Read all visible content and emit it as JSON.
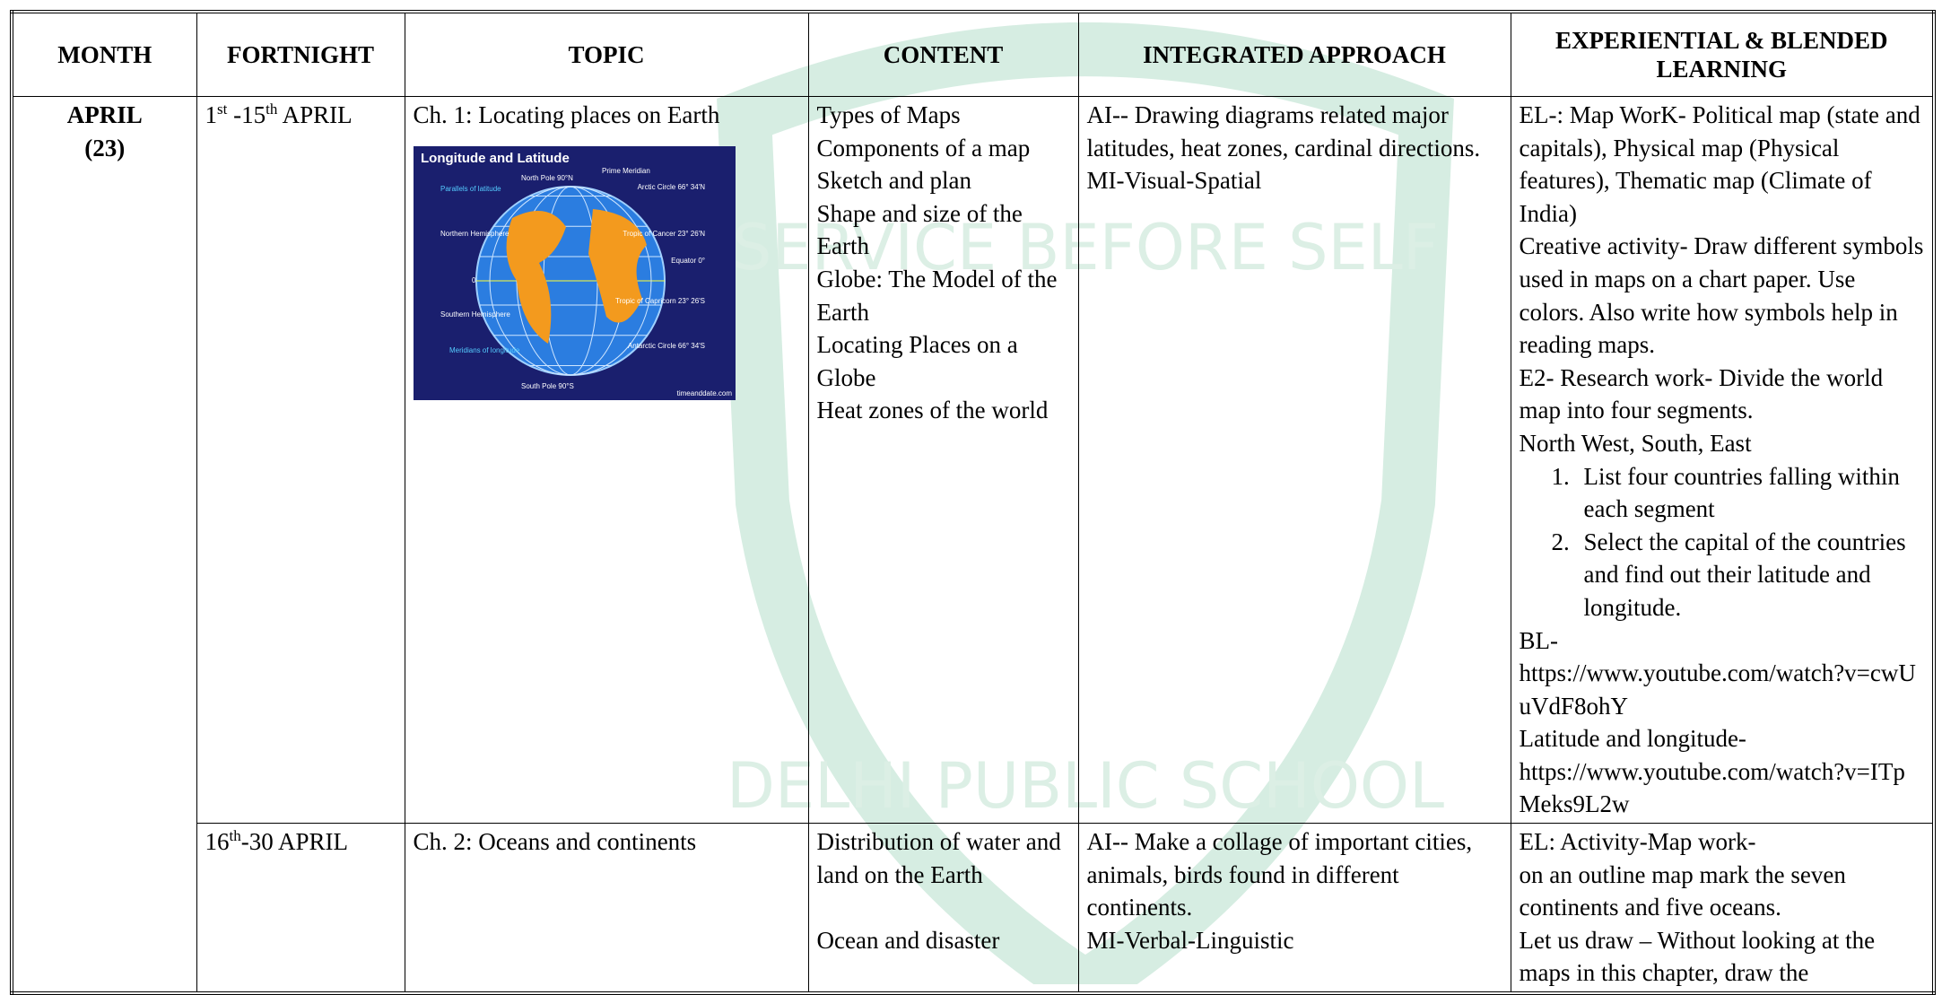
{
  "watermark": {
    "motto": "SERVICE BEFORE SELF",
    "name": "DELHI PUBLIC SCHOOL"
  },
  "table": {
    "columns": [
      "MONTH",
      "FORTNIGHT",
      "TOPIC",
      "CONTENT",
      "INTEGRATED APPROACH",
      "EXPERIENTIAL & BLENDED LEARNING"
    ],
    "rows": [
      {
        "month": {
          "name": "APRIL",
          "days": "(23)"
        },
        "fortnight": [
          {
            "text": "1"
          },
          {
            "text": "st",
            "sup": true
          },
          {
            "text": " -15"
          },
          {
            "text": "th",
            "sup": true
          },
          {
            "text": " APRIL"
          }
        ],
        "topic": "Ch. 1: Locating places on Earth",
        "image": {
          "title": "Longitude and Latitude",
          "labels": [
            "North Pole 90°N",
            "Prime Meridian",
            "Parallels of latitude",
            "Arctic Circle 66° 34'N",
            "Northern Hemisphere",
            "Tropic of Cancer 23° 26'N",
            "Equator 0°",
            "0",
            "Southern Hemisphere",
            "Tropic of Capricorn 23° 26'S",
            "Meridians of longitude",
            "Antarctic Circle 66° 34'S",
            "South Pole 90°S",
            "timeanddate.com"
          ]
        },
        "content": [
          [
            "Types of Maps",
            "Components of a map",
            "Sketch and plan",
            "Shape and size of the Earth",
            "Globe: The Model of the Earth",
            "Locating Places on a Globe",
            "Heat zones of the world"
          ]
        ],
        "integrated": [
          "AI-- Drawing diagrams related major latitudes, heat zones, cardinal directions.",
          "MI-Visual-Spatial"
        ],
        "experiential": [
          {
            "text": "EL-: Map WorK- Political map (state and capitals), Physical map (Physical features), Thematic map (Climate of India)"
          },
          {
            "text": "Creative activity- Draw different symbols used in maps on a chart paper. Use colors. Also write how symbols help in reading maps."
          },
          {
            "text": "E2- Research work- Divide the world map into four segments."
          },
          {
            "text": "North West, South, East"
          },
          {
            "marker": "1.",
            "text": "List four countries falling within each segment"
          },
          {
            "marker": "2.",
            "text": "Select the capital of the countries and find out their latitude and longitude."
          },
          {
            "text": "BL-"
          },
          {
            "text": "https://www.youtube.com/watch?v=cwUuVdF8ohY"
          },
          {
            "text": "Latitude and longitude-"
          },
          {
            "text": "https://www.youtube.com/watch?v=ITpMeks9L2w"
          }
        ]
      },
      {
        "fortnight": [
          {
            "text": "16"
          },
          {
            "text": "th",
            "sup": true
          },
          {
            "text": "-30 APRIL"
          }
        ],
        "topic": "Ch. 2: Oceans and continents",
        "content": [
          [
            "Distribution of water and land on the Earth"
          ],
          [
            "Ocean and disaster"
          ]
        ],
        "integrated": [
          "AI-- Make a collage of important cities, animals, birds found in different continents.",
          "MI-Verbal-Linguistic"
        ],
        "experiential": [
          {
            "text": "EL: Activity-Map work-"
          },
          {
            "text": "on an outline map mark the seven continents and five oceans."
          },
          {
            "text": "Let us draw – Without looking at the maps in this chapter, draw the"
          }
        ]
      }
    ]
  }
}
